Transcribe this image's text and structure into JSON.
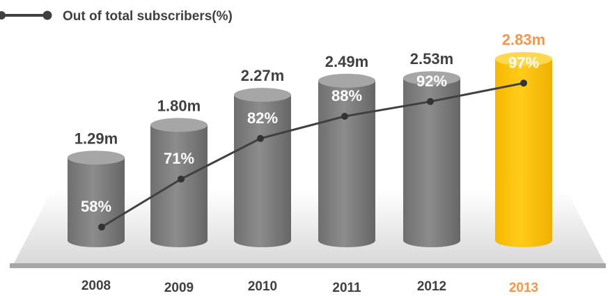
{
  "chart_data": {
    "type": "bar",
    "legend": {
      "label": "Out of total subscribers(%)",
      "placement": "top-left"
    },
    "categories": [
      "2008",
      "2009",
      "2010",
      "2011",
      "2012",
      "2013"
    ],
    "series": [
      {
        "values": [
          1.29,
          1.8,
          2.27,
          2.49,
          2.53,
          2.83
        ],
        "labels": [
          "1.29m",
          "1.80m",
          "2.27m",
          "2.49m",
          "2.53m",
          "2.83m"
        ]
      },
      {
        "name": "Out of total subscribers(%)",
        "type": "line",
        "values": [
          58,
          71,
          82,
          88,
          92,
          97
        ],
        "labels": [
          "58%",
          "71%",
          "82%",
          "88%",
          "92%",
          "97%"
        ]
      }
    ],
    "highlight_category": "2013",
    "colors": {
      "bar": "#7f7f7f",
      "bar_top": "#a6a6a6",
      "highlight": "#ffc000",
      "highlight_top": "#ffd84d",
      "line": "#404040",
      "text": "#404040",
      "highlight_text": "#f79646"
    }
  }
}
